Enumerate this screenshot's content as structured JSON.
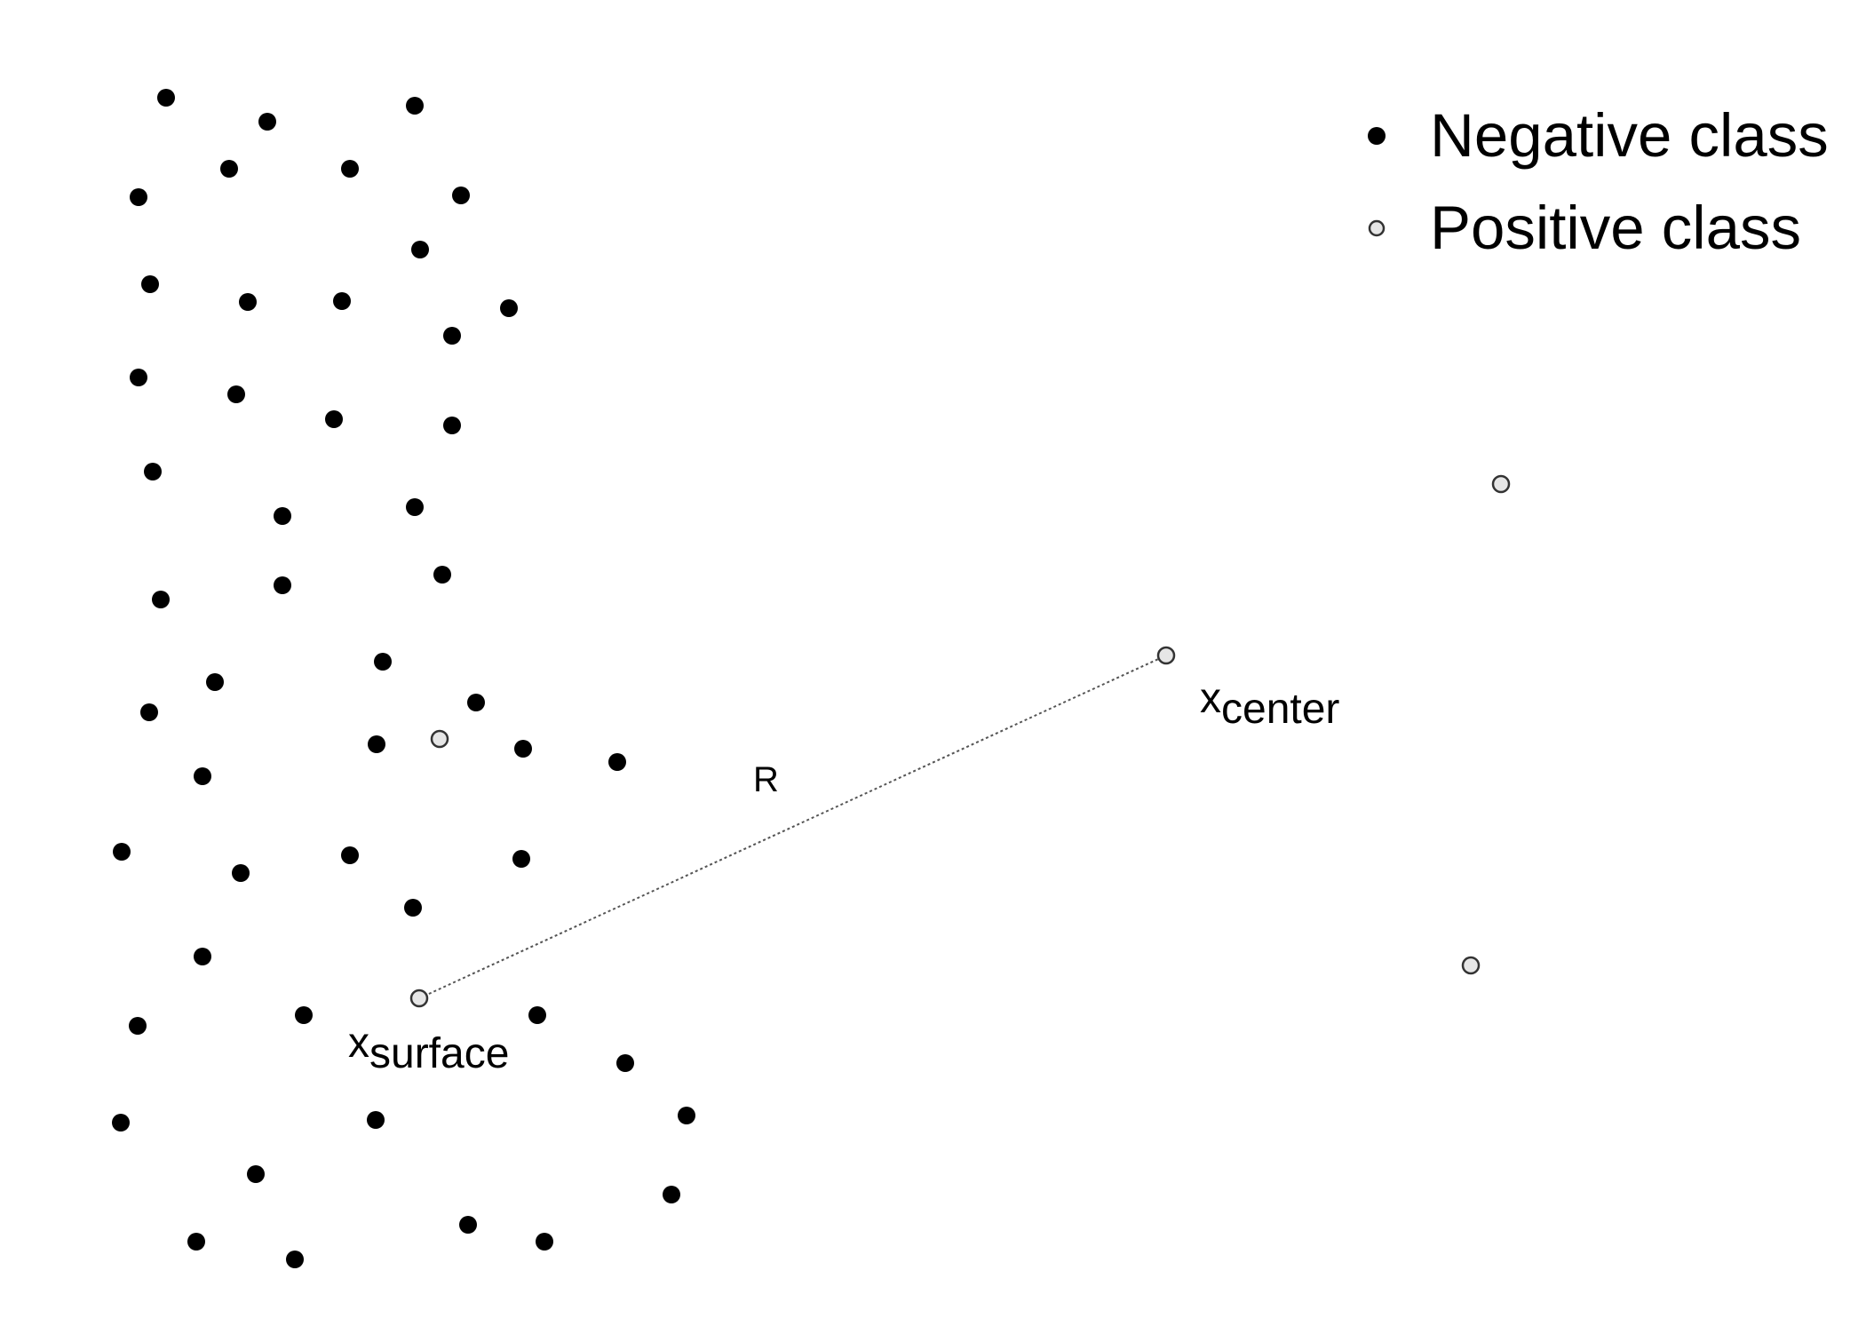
{
  "legend": {
    "negative_label": "Negative class",
    "positive_label": "Positive class"
  },
  "labels": {
    "center_main": "x",
    "center_sub": "center",
    "surface_main": "x",
    "surface_sub": "surface",
    "radius": "R"
  },
  "colors": {
    "negative_fill": "#000000",
    "positive_fill": "#e6e6e6",
    "positive_stroke": "#333333",
    "line": "#555555"
  }
}
